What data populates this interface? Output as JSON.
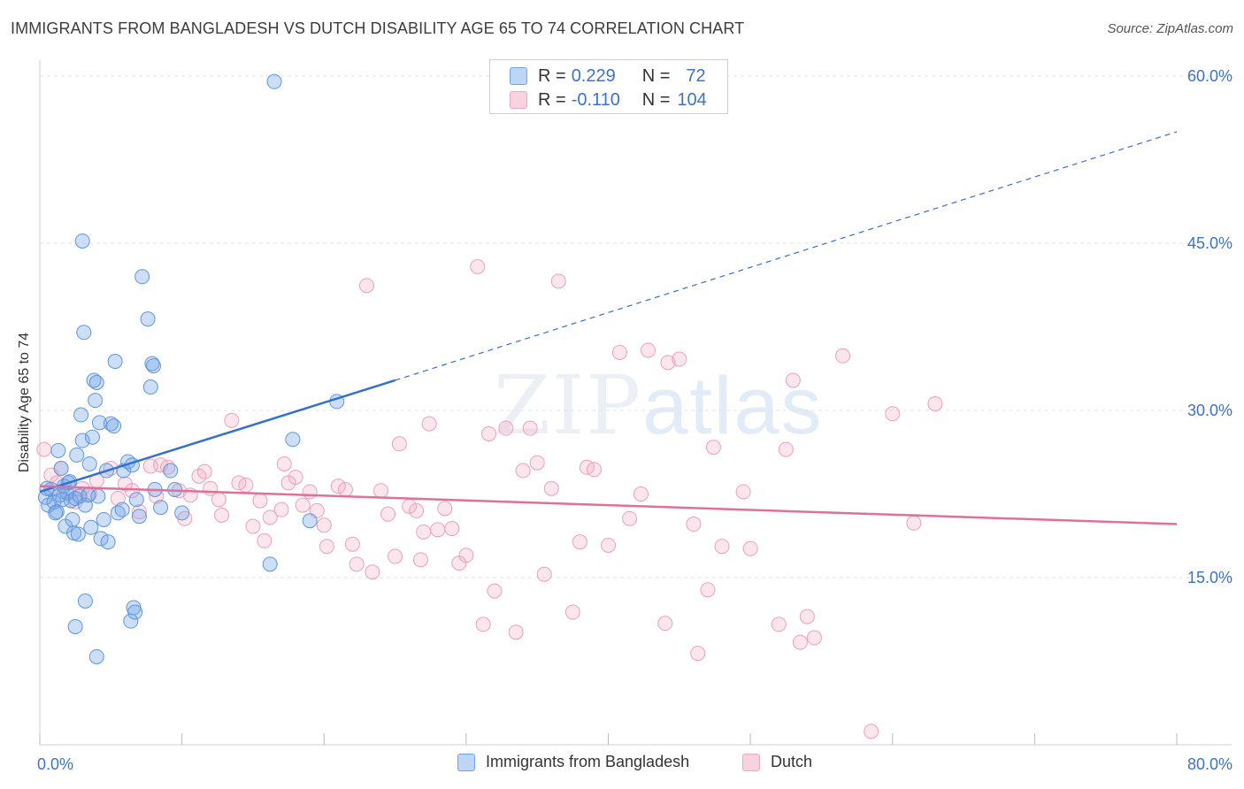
{
  "title": "IMMIGRANTS FROM BANGLADESH VS DUTCH DISABILITY AGE 65 TO 74 CORRELATION CHART",
  "source": "Source: ZipAtlas.com",
  "watermark": {
    "zip": "ZIP",
    "atlas": "atlas"
  },
  "legend": {
    "row1": {
      "r_label": "R =",
      "r_value": "0.229",
      "n_label": "N =",
      "n_value": "72"
    },
    "row2": {
      "r_label": "R =",
      "r_value": "-0.110",
      "n_label": "N =",
      "n_value": "104"
    }
  },
  "chart_data": {
    "type": "scatter",
    "title": "IMMIGRANTS FROM BANGLADESH VS DUTCH DISABILITY AGE 65 TO 74 CORRELATION CHART",
    "xlabel": "",
    "ylabel": "Disability Age 65 to 74",
    "xlim": [
      0,
      80
    ],
    "ylim": [
      0,
      63
    ],
    "x_tick_labels": [
      "0.0%",
      "80.0%"
    ],
    "y_ticks": [
      15,
      30,
      45,
      60
    ],
    "y_tick_labels": [
      "15.0%",
      "30.0%",
      "45.0%",
      "60.0%"
    ],
    "grid": true,
    "legend_position": "bottom",
    "colors": {
      "blue": "#6fa3e8",
      "blue_line": "#3470d0",
      "pink": "#f2a6bf",
      "pink_line": "#e0709a"
    },
    "series": [
      {
        "name": "Immigrants from Bangladesh",
        "r": 0.229,
        "n": 72,
        "trend": {
          "x0": 0,
          "y0": 22.7,
          "x1": 25,
          "y1": 32.7,
          "dash_to_x": 80,
          "dash_to_y": 55.0
        },
        "points": [
          [
            0.4,
            22.2
          ],
          [
            0.6,
            21.5
          ],
          [
            0.8,
            22.9
          ],
          [
            1.0,
            21.8
          ],
          [
            1.2,
            20.9
          ],
          [
            1.4,
            22.4
          ],
          [
            1.5,
            24.8
          ],
          [
            1.6,
            22.0
          ],
          [
            1.7,
            23.2
          ],
          [
            1.8,
            19.6
          ],
          [
            1.9,
            22.6
          ],
          [
            2.0,
            23.5
          ],
          [
            2.2,
            21.9
          ],
          [
            2.3,
            20.2
          ],
          [
            2.4,
            19.0
          ],
          [
            2.5,
            22.1
          ],
          [
            2.6,
            26.0
          ],
          [
            2.7,
            18.9
          ],
          [
            2.8,
            22.3
          ],
          [
            2.9,
            29.6
          ],
          [
            3.0,
            27.3
          ],
          [
            3.2,
            21.5
          ],
          [
            3.4,
            22.4
          ],
          [
            3.5,
            25.2
          ],
          [
            3.6,
            19.5
          ],
          [
            3.7,
            27.6
          ],
          [
            3.8,
            32.7
          ],
          [
            3.9,
            30.9
          ],
          [
            4.0,
            32.5
          ],
          [
            4.1,
            22.3
          ],
          [
            4.2,
            28.9
          ],
          [
            4.3,
            18.5
          ],
          [
            4.5,
            20.2
          ],
          [
            4.7,
            24.6
          ],
          [
            4.8,
            18.2
          ],
          [
            5.0,
            28.8
          ],
          [
            5.2,
            28.6
          ],
          [
            5.3,
            34.4
          ],
          [
            5.5,
            20.8
          ],
          [
            5.8,
            21.1
          ],
          [
            5.9,
            24.6
          ],
          [
            6.2,
            25.4
          ],
          [
            6.5,
            25.1
          ],
          [
            6.8,
            22.0
          ],
          [
            7.0,
            20.5
          ],
          [
            7.2,
            42.0
          ],
          [
            7.6,
            38.2
          ],
          [
            7.8,
            32.1
          ],
          [
            7.9,
            34.2
          ],
          [
            8.0,
            34.0
          ],
          [
            8.1,
            22.9
          ],
          [
            8.5,
            21.3
          ],
          [
            9.2,
            24.6
          ],
          [
            9.5,
            22.9
          ],
          [
            10.0,
            20.8
          ],
          [
            3.0,
            45.2
          ],
          [
            3.1,
            37.0
          ],
          [
            3.2,
            12.9
          ],
          [
            2.5,
            10.6
          ],
          [
            4.0,
            7.9
          ],
          [
            6.4,
            11.1
          ],
          [
            6.6,
            12.3
          ],
          [
            6.7,
            11.9
          ],
          [
            16.2,
            16.2
          ],
          [
            16.5,
            59.5
          ],
          [
            17.8,
            27.4
          ],
          [
            19.0,
            20.1
          ],
          [
            20.9,
            30.8
          ],
          [
            1.3,
            26.4
          ],
          [
            2.1,
            23.6
          ],
          [
            1.1,
            20.8
          ],
          [
            0.5,
            23.0
          ]
        ]
      },
      {
        "name": "Dutch",
        "r": -0.11,
        "n": 104,
        "trend": {
          "x0": 0,
          "y0": 23.2,
          "x1": 80,
          "y1": 19.8
        },
        "points": [
          [
            0.3,
            26.5
          ],
          [
            0.8,
            24.2
          ],
          [
            1.2,
            23.5
          ],
          [
            1.5,
            24.8
          ],
          [
            2.0,
            22.6
          ],
          [
            2.5,
            21.8
          ],
          [
            3.0,
            23.0
          ],
          [
            3.5,
            22.5
          ],
          [
            4.0,
            23.7
          ],
          [
            5.0,
            24.8
          ],
          [
            5.5,
            22.1
          ],
          [
            6.0,
            23.4
          ],
          [
            6.5,
            22.8
          ],
          [
            7.0,
            20.9
          ],
          [
            7.8,
            25.0
          ],
          [
            8.2,
            22.3
          ],
          [
            8.5,
            25.1
          ],
          [
            9.0,
            24.9
          ],
          [
            9.8,
            22.8
          ],
          [
            10.2,
            20.3
          ],
          [
            10.6,
            22.4
          ],
          [
            11.2,
            24.1
          ],
          [
            11.6,
            24.5
          ],
          [
            12.0,
            23.0
          ],
          [
            12.6,
            22.0
          ],
          [
            13.5,
            29.1
          ],
          [
            14.0,
            23.5
          ],
          [
            14.5,
            23.3
          ],
          [
            15.0,
            19.6
          ],
          [
            15.5,
            21.9
          ],
          [
            15.8,
            18.3
          ],
          [
            16.2,
            20.4
          ],
          [
            17.0,
            21.1
          ],
          [
            17.5,
            23.5
          ],
          [
            18.0,
            24.0
          ],
          [
            18.5,
            21.5
          ],
          [
            19.0,
            22.7
          ],
          [
            19.5,
            21.0
          ],
          [
            20.0,
            19.7
          ],
          [
            20.2,
            17.8
          ],
          [
            21.0,
            23.2
          ],
          [
            21.5,
            22.9
          ],
          [
            22.0,
            18.0
          ],
          [
            22.3,
            16.2
          ],
          [
            23.0,
            41.2
          ],
          [
            23.4,
            15.5
          ],
          [
            24.0,
            22.8
          ],
          [
            24.5,
            20.7
          ],
          [
            25.0,
            16.9
          ],
          [
            25.3,
            27.0
          ],
          [
            26.0,
            21.4
          ],
          [
            26.5,
            21.0
          ],
          [
            27.0,
            19.1
          ],
          [
            27.4,
            28.8
          ],
          [
            28.0,
            19.3
          ],
          [
            28.5,
            21.2
          ],
          [
            29.0,
            19.4
          ],
          [
            29.5,
            16.3
          ],
          [
            30.0,
            17.0
          ],
          [
            30.8,
            42.9
          ],
          [
            31.2,
            10.8
          ],
          [
            31.6,
            27.9
          ],
          [
            32.0,
            13.8
          ],
          [
            32.8,
            28.4
          ],
          [
            33.5,
            10.1
          ],
          [
            34.0,
            24.6
          ],
          [
            34.5,
            28.4
          ],
          [
            35.0,
            25.3
          ],
          [
            35.5,
            15.3
          ],
          [
            36.0,
            23.0
          ],
          [
            37.5,
            11.9
          ],
          [
            38.0,
            18.2
          ],
          [
            38.5,
            24.9
          ],
          [
            39.0,
            24.7
          ],
          [
            40.0,
            17.9
          ],
          [
            40.8,
            35.2
          ],
          [
            41.5,
            20.3
          ],
          [
            42.3,
            22.5
          ],
          [
            42.8,
            35.4
          ],
          [
            44.0,
            10.9
          ],
          [
            44.2,
            34.3
          ],
          [
            45.0,
            34.6
          ],
          [
            46.0,
            19.8
          ],
          [
            46.3,
            8.2
          ],
          [
            47.0,
            13.9
          ],
          [
            47.4,
            26.7
          ],
          [
            48.0,
            17.8
          ],
          [
            49.5,
            22.7
          ],
          [
            50.0,
            17.6
          ],
          [
            52.0,
            10.8
          ],
          [
            52.5,
            26.5
          ],
          [
            53.0,
            32.7
          ],
          [
            53.5,
            9.2
          ],
          [
            54.0,
            11.5
          ],
          [
            54.5,
            9.6
          ],
          [
            56.5,
            34.9
          ],
          [
            58.5,
            1.2
          ],
          [
            60.0,
            29.7
          ],
          [
            61.5,
            19.9
          ],
          [
            63.0,
            30.6
          ],
          [
            36.5,
            41.6
          ],
          [
            17.2,
            25.2
          ],
          [
            12.8,
            20.6
          ],
          [
            26.8,
            16.6
          ]
        ]
      }
    ]
  },
  "bottom_legend": {
    "item1": "Immigrants from Bangladesh",
    "item2": "Dutch"
  }
}
